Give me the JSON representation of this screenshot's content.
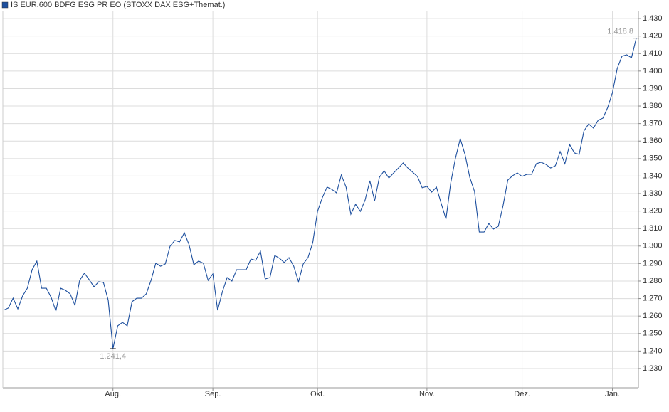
{
  "chart_data": {
    "type": "line",
    "series": [
      {
        "name": "IS EUR.600 BDFG ESG PR EO (STOXX DAX ESG+Themat.)",
        "color": "#1d4f9e",
        "values": [
          1263.3,
          1264.6,
          1270.2,
          1264.1,
          1271.5,
          1275.9,
          1286.5,
          1291.4,
          1275.9,
          1275.9,
          1270.7,
          1262.9,
          1275.9,
          1274.7,
          1272.7,
          1266.2,
          1280.4,
          1284.5,
          1280.8,
          1276.7,
          1279.6,
          1279.2,
          1269,
          1241.4,
          1254.4,
          1256.4,
          1254.4,
          1268.2,
          1270.2,
          1270.2,
          1272.7,
          1280.4,
          1290.2,
          1288.5,
          1289.8,
          1299.9,
          1303.2,
          1302.4,
          1307.6,
          1300.7,
          1289.3,
          1291.4,
          1290.2,
          1280.4,
          1284.1,
          1263.3,
          1273.9,
          1282,
          1280,
          1286.5,
          1286.5,
          1286.5,
          1292.6,
          1291.8,
          1297.1,
          1281.2,
          1282,
          1294.6,
          1293,
          1290.6,
          1293.4,
          1288.5,
          1279.6,
          1289.8,
          1293.4,
          1302,
          1319.8,
          1327.6,
          1333.7,
          1332.4,
          1330.4,
          1340.6,
          1333.7,
          1318.2,
          1323.9,
          1319.8,
          1326.3,
          1337.3,
          1325.9,
          1339.3,
          1343,
          1338.9,
          1341.8,
          1344.6,
          1347.5,
          1344.6,
          1342.2,
          1339.8,
          1333.3,
          1334.1,
          1330.8,
          1333.7,
          1324.3,
          1315.4,
          1336.1,
          1350.3,
          1361.3,
          1352.4,
          1339.3,
          1331.2,
          1308,
          1308,
          1312.9,
          1309.7,
          1311.3,
          1323.1,
          1337.7,
          1340.2,
          1341.8,
          1339.8,
          1341,
          1341,
          1347.1,
          1347.9,
          1346.7,
          1344.6,
          1345.9,
          1354,
          1347.1,
          1358,
          1353.2,
          1352.4,
          1365.8,
          1369.8,
          1367.4,
          1371.9,
          1373.1,
          1379.2,
          1387.7,
          1401.5,
          1408.5,
          1409.3,
          1407.6,
          1418.8
        ],
        "value_labels": [
          null,
          null,
          null,
          null,
          null,
          null,
          null,
          null,
          null,
          null,
          null,
          null,
          null,
          null,
          null,
          null,
          null,
          null,
          null,
          null,
          null,
          null,
          null,
          "1.241,4",
          null,
          null,
          null,
          null,
          null,
          null,
          null,
          null,
          null,
          null,
          null,
          null,
          null,
          null,
          null,
          null,
          null,
          null,
          null,
          null,
          null,
          null,
          null,
          null,
          null,
          null,
          null,
          null,
          null,
          null,
          null,
          null,
          null,
          null,
          null,
          null,
          null,
          null,
          null,
          null,
          null,
          null,
          null,
          null,
          null,
          null,
          null,
          null,
          null,
          null,
          null,
          null,
          null,
          null,
          null,
          null,
          null,
          null,
          null,
          null,
          null,
          null,
          null,
          null,
          null,
          null,
          null,
          null,
          null,
          null,
          null,
          null,
          null,
          null,
          null,
          null,
          null,
          null,
          null,
          null,
          null,
          null,
          null,
          null,
          null,
          null,
          null,
          null,
          null,
          null,
          null,
          null,
          null,
          null,
          null,
          null,
          null,
          null,
          null,
          null,
          null,
          null,
          null,
          null,
          null,
          null,
          null,
          null,
          null,
          "1.418,8"
        ]
      }
    ],
    "categories": [
      null,
      null,
      null,
      null,
      null,
      null,
      null,
      null,
      null,
      null,
      null,
      null,
      null,
      null,
      null,
      null,
      null,
      null,
      null,
      null,
      null,
      null,
      null,
      "Aug.",
      null,
      null,
      null,
      null,
      null,
      null,
      null,
      null,
      null,
      null,
      null,
      null,
      null,
      null,
      null,
      null,
      null,
      null,
      null,
      null,
      "Sep.",
      null,
      null,
      null,
      null,
      null,
      null,
      null,
      null,
      null,
      null,
      null,
      null,
      null,
      null,
      null,
      null,
      null,
      null,
      null,
      null,
      null,
      "Okt.",
      null,
      null,
      null,
      null,
      null,
      null,
      null,
      null,
      null,
      null,
      null,
      null,
      null,
      null,
      null,
      null,
      null,
      null,
      null,
      null,
      null,
      null,
      "Nov.",
      null,
      null,
      null,
      null,
      null,
      null,
      null,
      null,
      null,
      null,
      null,
      null,
      null,
      null,
      null,
      null,
      null,
      null,
      null,
      "Dez.",
      null,
      null,
      null,
      null,
      null,
      null,
      null,
      null,
      null,
      null,
      null,
      null,
      null,
      null,
      null,
      null,
      null,
      null,
      "Jan.",
      null,
      null,
      null,
      null,
      null
    ],
    "ylim": [
      1219.0,
      1434.5
    ],
    "yticks": [
      {
        "value": 1230,
        "label": "1.230"
      },
      {
        "value": 1240,
        "label": "1.240"
      },
      {
        "value": 1250,
        "label": "1.250"
      },
      {
        "value": 1260,
        "label": "1.260"
      },
      {
        "value": 1270,
        "label": "1.270"
      },
      {
        "value": 1280,
        "label": "1.280"
      },
      {
        "value": 1290,
        "label": "1.290"
      },
      {
        "value": 1300,
        "label": "1.300"
      },
      {
        "value": 1310,
        "label": "1.310"
      },
      {
        "value": 1320,
        "label": "1.320"
      },
      {
        "value": 1330,
        "label": "1.330"
      },
      {
        "value": 1340,
        "label": "1.340"
      },
      {
        "value": 1350,
        "label": "1.350"
      },
      {
        "value": 1360,
        "label": "1.360"
      },
      {
        "value": 1370,
        "label": "1.370"
      },
      {
        "value": 1380,
        "label": "1.380"
      },
      {
        "value": 1390,
        "label": "1.390"
      },
      {
        "value": 1400,
        "label": "1.400"
      },
      {
        "value": 1410,
        "label": "1.410"
      },
      {
        "value": 1420,
        "label": "1.420"
      },
      {
        "value": 1430,
        "label": "1.430"
      }
    ],
    "grid": true
  }
}
